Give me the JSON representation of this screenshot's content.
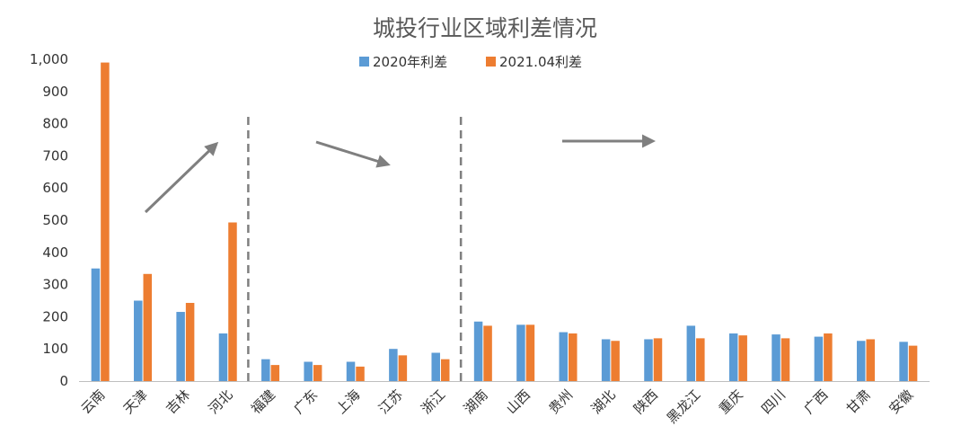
{
  "chart_data": {
    "type": "bar",
    "title": "城投行业区域利差情况",
    "xlabel": "",
    "ylabel": "",
    "ylim": [
      0,
      1000
    ],
    "yticks": [
      "0",
      "100",
      "200",
      "300",
      "400",
      "500",
      "600",
      "700",
      "800",
      "900",
      "1,000"
    ],
    "legend_position": "top-center",
    "grid": false,
    "categories": [
      "云南",
      "天津",
      "吉林",
      "河北",
      "福建",
      "广东",
      "上海",
      "江苏",
      "浙江",
      "湖南",
      "山西",
      "贵州",
      "湖北",
      "陕西",
      "黑龙江",
      "重庆",
      "四川",
      "广西",
      "甘肃",
      "安徽"
    ],
    "series": [
      {
        "name": "2020年利差",
        "color": "#5B9BD5",
        "values": [
          350,
          250,
          215,
          148,
          68,
          60,
          60,
          100,
          88,
          185,
          175,
          152,
          130,
          130,
          172,
          148,
          145,
          138,
          125,
          122
        ]
      },
      {
        "name": "2021.04利差",
        "color": "#ED7D31",
        "values": [
          990,
          333,
          243,
          493,
          50,
          50,
          45,
          80,
          68,
          172,
          175,
          148,
          125,
          133,
          133,
          142,
          133,
          148,
          130,
          110
        ]
      }
    ],
    "annotations": {
      "separator_after_categories": [
        3,
        8
      ],
      "trend_arrows": [
        "up",
        "down",
        "flat"
      ]
    }
  }
}
